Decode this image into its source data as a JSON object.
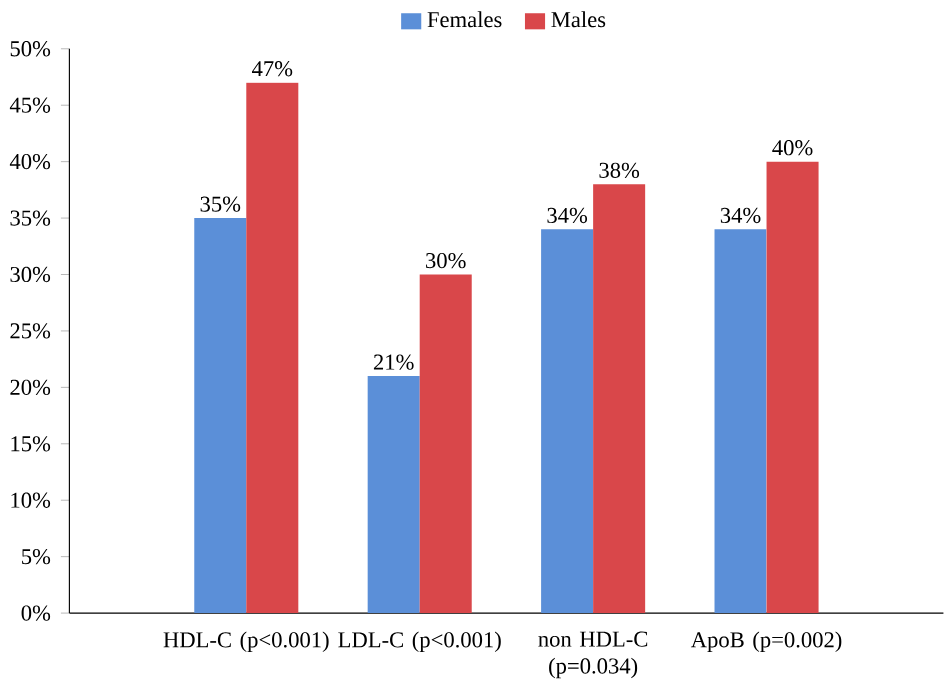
{
  "chart_data": {
    "type": "bar",
    "categories": [
      "HDL-C (p<0.001)",
      "LDL-C (p<0.001)",
      "non HDL-C (p=0.034)",
      "ApoB (p=0.002)"
    ],
    "series": [
      {
        "name": "Females",
        "color": "#5b8fd8",
        "values": [
          35,
          21,
          34,
          34
        ],
        "value_labels": [
          "35%",
          "21%",
          "34%",
          "34%"
        ]
      },
      {
        "name": "Males",
        "color": "#d9474a",
        "values": [
          47,
          30,
          38,
          40
        ],
        "value_labels": [
          "47%",
          "30%",
          "38%",
          "40%"
        ]
      }
    ],
    "ylim": [
      0,
      50
    ],
    "yticks": [
      {
        "value": 0,
        "label": "0%"
      },
      {
        "value": 5,
        "label": "5%"
      },
      {
        "value": 10,
        "label": "10%"
      },
      {
        "value": 15,
        "label": "15%"
      },
      {
        "value": 20,
        "label": "20%"
      },
      {
        "value": 25,
        "label": "25%"
      },
      {
        "value": 30,
        "label": "30%"
      },
      {
        "value": 35,
        "label": "35%"
      },
      {
        "value": 40,
        "label": "40%"
      },
      {
        "value": 45,
        "label": "45%"
      },
      {
        "value": 50,
        "label": "50%"
      }
    ],
    "legend": "top",
    "grid": false
  }
}
